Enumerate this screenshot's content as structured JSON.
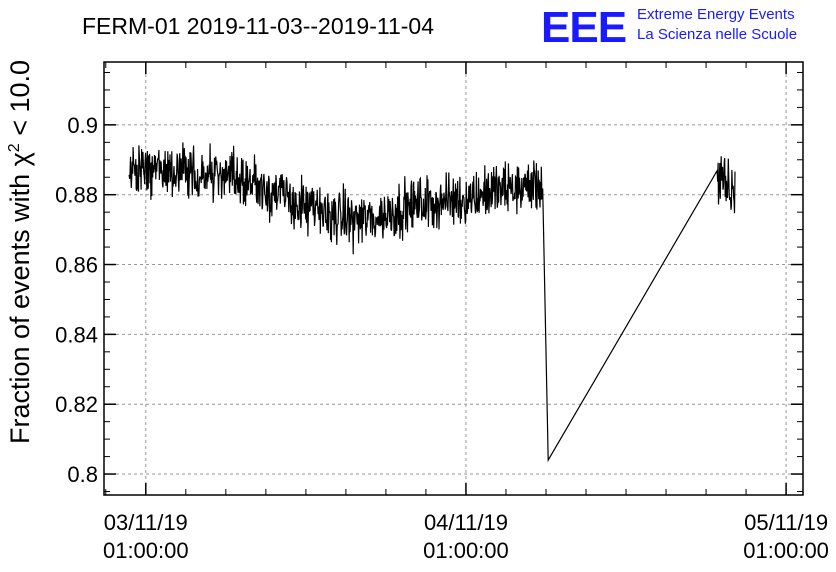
{
  "logo": {
    "mark": "EEE",
    "line1": "Extreme Energy Events",
    "line2": "La Scienza nelle Scuole",
    "color": "#1a1aff"
  },
  "chart_data": {
    "type": "line",
    "title": "FERM-01 2019-11-03--2019-11-04",
    "ylabel_prefix": "Fraction of events with ",
    "ylabel_symbol": "χ",
    "ylabel_sup": "2",
    "ylabel_suffix": " < 10.0",
    "xlabel": "",
    "ylim": [
      0.794,
      0.918
    ],
    "xlim": [
      "2019-11-02T21:52:00",
      "2019-11-05T02:16:00"
    ],
    "y_ticks": [
      "0.8",
      "0.82",
      "0.84",
      "0.86",
      "0.88",
      "0.9"
    ],
    "x_ticks": [
      {
        "date": "03/11/19",
        "time": "01:00:00"
      },
      {
        "date": "04/11/19",
        "time": "01:00:00"
      },
      {
        "date": "05/11/19",
        "time": "01:00:00"
      }
    ],
    "grid": true,
    "line_color": "#000000",
    "series": [
      {
        "x": [
          "2019-11-02T23:45:00",
          "2019-11-03T01:00:00",
          "2019-11-03T03:00:00",
          "2019-11-03T05:00:00",
          "2019-11-03T07:00:00",
          "2019-11-03T09:00:00",
          "2019-11-03T11:00:00",
          "2019-11-03T13:00:00",
          "2019-11-03T15:00:00",
          "2019-11-03T16:30:00",
          "2019-11-03T18:00:00",
          "2019-11-03T19:30:00",
          "2019-11-03T21:00:00",
          "2019-11-03T23:00:00",
          "2019-11-04T01:00:00",
          "2019-11-04T03:00:00",
          "2019-11-04T05:00:00",
          "2019-11-04T06:45:00",
          "2019-11-04T07:10:00",
          "2019-11-04T19:50:00",
          "2019-11-04T21:10:00"
        ],
        "y": [
          0.886,
          0.887,
          0.887,
          0.886,
          0.885,
          0.884,
          0.88,
          0.876,
          0.874,
          0.873,
          0.873,
          0.875,
          0.877,
          0.878,
          0.879,
          0.881,
          0.882,
          0.883,
          0.804,
          0.884,
          0.88
        ]
      }
    ]
  }
}
